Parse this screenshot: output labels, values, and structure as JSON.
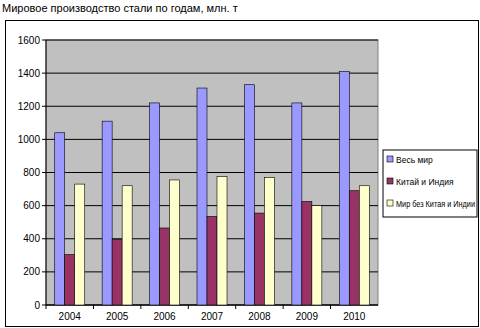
{
  "chart_data": {
    "type": "bar",
    "title": "Мировое производство стали по годам, млн. т",
    "categories": [
      "2004",
      "2005",
      "2006",
      "2007",
      "2008",
      "2009",
      "2010"
    ],
    "series": [
      {
        "name": "Весь мир",
        "color": "#9999ff",
        "values": [
          1040,
          1110,
          1220,
          1310,
          1330,
          1220,
          1410
        ]
      },
      {
        "name": "Китай и Индия",
        "color": "#993366",
        "values": [
          305,
          395,
          465,
          535,
          555,
          625,
          690
        ]
      },
      {
        "name": "Мир без Китая и Индии",
        "color": "#ffffcc",
        "values": [
          730,
          720,
          755,
          775,
          770,
          600,
          720
        ]
      }
    ],
    "ylim": [
      0,
      1600
    ],
    "yticks": [
      0,
      200,
      400,
      600,
      800,
      1000,
      1200,
      1400,
      1600
    ],
    "grid": true,
    "legend": "right"
  }
}
